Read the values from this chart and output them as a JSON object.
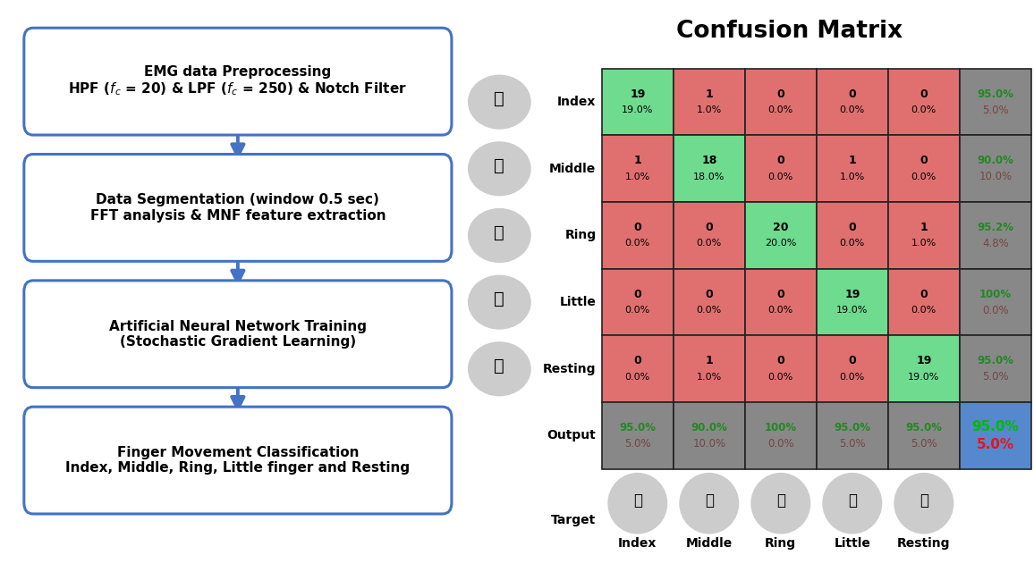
{
  "title": "Confusion Matrix",
  "matrix": [
    [
      19,
      1,
      0,
      0,
      0
    ],
    [
      1,
      18,
      0,
      1,
      0
    ],
    [
      0,
      0,
      20,
      0,
      1
    ],
    [
      0,
      0,
      0,
      19,
      0
    ],
    [
      0,
      1,
      0,
      0,
      19
    ]
  ],
  "matrix_pct": [
    [
      "19.0%",
      "1.0%",
      "0.0%",
      "0.0%",
      "0.0%"
    ],
    [
      "1.0%",
      "18.0%",
      "0.0%",
      "1.0%",
      "0.0%"
    ],
    [
      "0.0%",
      "0.0%",
      "20.0%",
      "0.0%",
      "1.0%"
    ],
    [
      "0.0%",
      "0.0%",
      "0.0%",
      "19.0%",
      "0.0%"
    ],
    [
      "0.0%",
      "1.0%",
      "0.0%",
      "0.0%",
      "19.0%"
    ]
  ],
  "row_labels": [
    "Index",
    "Middle",
    "Ring",
    "Little",
    "Resting"
  ],
  "col_labels": [
    "Index",
    "Middle",
    "Ring",
    "Little",
    "Resting"
  ],
  "row_recall_green": [
    "95.0%",
    "90.0%",
    "95.2%",
    "100%",
    "95.0%"
  ],
  "row_recall_red": [
    "5.0%",
    "10.0%",
    "4.8%",
    "0.0%",
    "5.0%"
  ],
  "col_precision_green": [
    "95.0%",
    "90.0%",
    "100%",
    "95.0%",
    "95.0%"
  ],
  "col_precision_red": [
    "5.0%",
    "10.0%",
    "0.0%",
    "5.0%",
    "5.0%"
  ],
  "overall_accuracy_green": "95.0%",
  "overall_accuracy_red": "5.0%",
  "color_correct": "#6EDB8F",
  "color_wrong": "#E07070",
  "color_summary": "#888888",
  "color_overall": "#5588CC",
  "box_border": "#4472C4",
  "arrow_color": "#4472C4",
  "bg_color": "#FFFFFF",
  "box_texts": [
    "EMG data Preprocessing\nHPF ($\\it{f}_c$ = 20) & LPF ($\\it{f}_c$ = 250) & Notch Filter",
    "Data Segmentation (window 0.5 sec)\nFFT analysis & MNF feature extraction",
    "Artificial Neural Network Training\n(Stochastic Gradient Learning)",
    "Finger Movement Classification\nIndex, Middle, Ring, Little finger and Resting"
  ]
}
